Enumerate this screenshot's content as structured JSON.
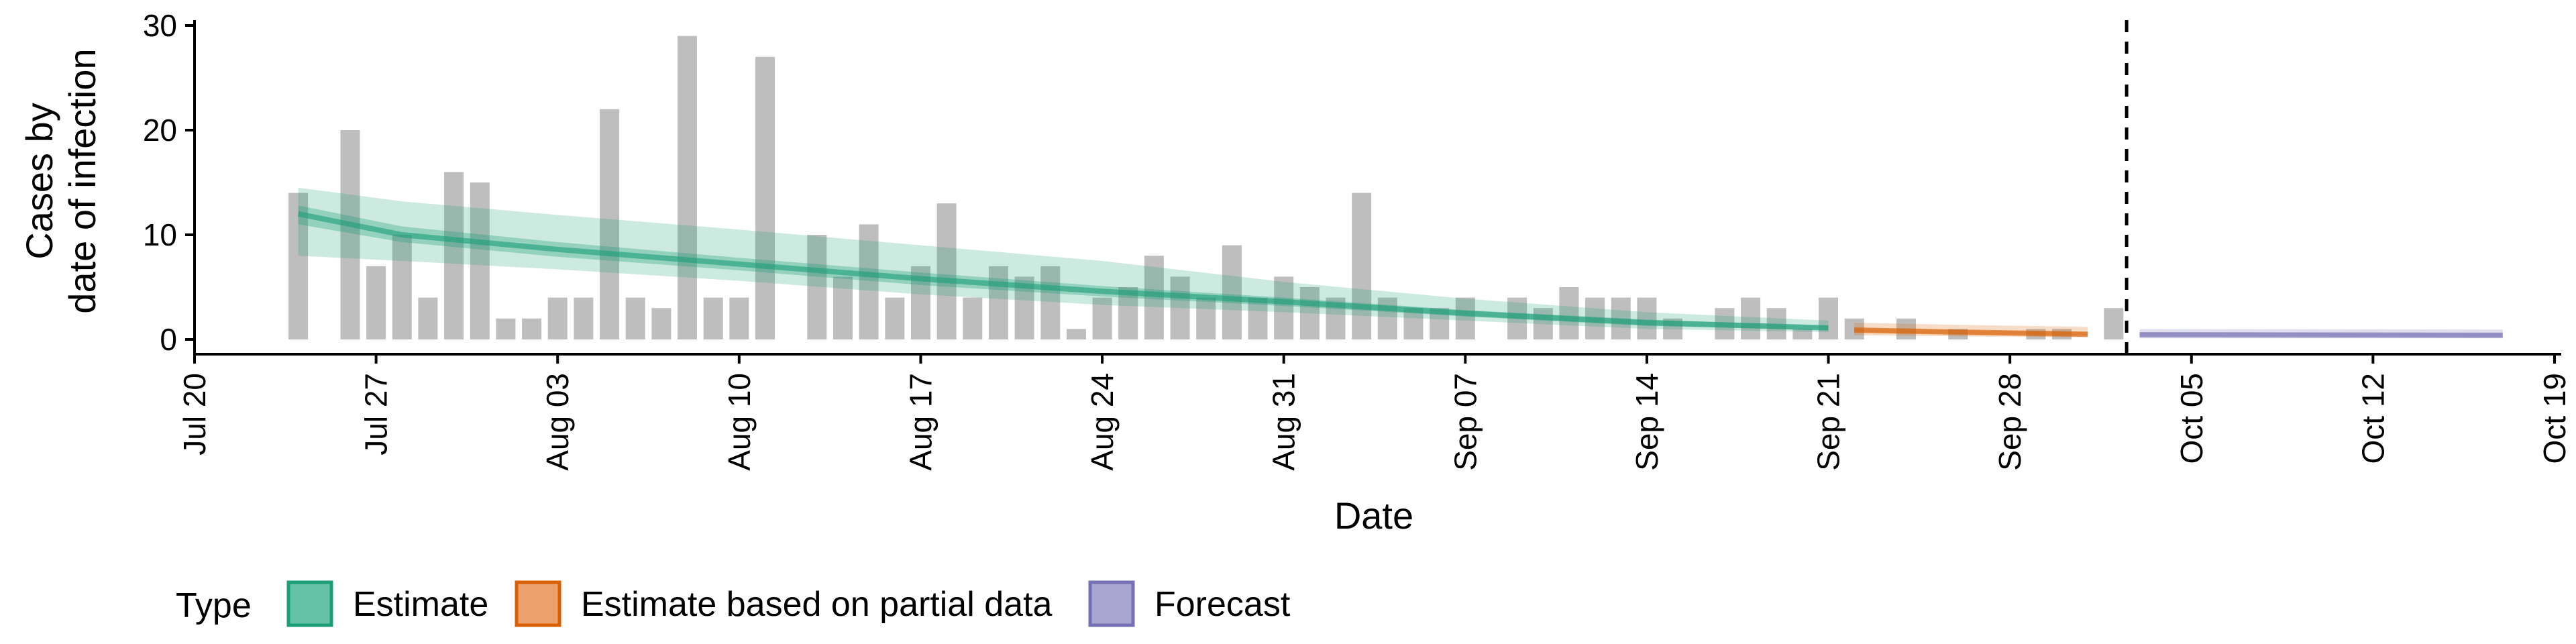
{
  "chart_data": {
    "type": "bar",
    "xlabel": "Date",
    "ylabel_lines": [
      "Cases by",
      "date of infection"
    ],
    "ylim": [
      0,
      30
    ],
    "yticks": [
      0,
      10,
      20,
      30
    ],
    "xlim": [
      "2020-07-20",
      "2020-10-19"
    ],
    "xticks": [
      {
        "date": "2020-07-20",
        "label": "Jul 20"
      },
      {
        "date": "2020-07-27",
        "label": "Jul 27"
      },
      {
        "date": "2020-08-03",
        "label": "Aug 03"
      },
      {
        "date": "2020-08-10",
        "label": "Aug 10"
      },
      {
        "date": "2020-08-17",
        "label": "Aug 17"
      },
      {
        "date": "2020-08-24",
        "label": "Aug 24"
      },
      {
        "date": "2020-08-31",
        "label": "Aug 31"
      },
      {
        "date": "2020-09-07",
        "label": "Sep 07"
      },
      {
        "date": "2020-09-14",
        "label": "Sep 14"
      },
      {
        "date": "2020-09-21",
        "label": "Sep 21"
      },
      {
        "date": "2020-09-28",
        "label": "Sep 28"
      },
      {
        "date": "2020-10-05",
        "label": "Oct 05"
      },
      {
        "date": "2020-10-12",
        "label": "Oct 12"
      },
      {
        "date": "2020-10-19",
        "label": "Oct 19"
      }
    ],
    "bars": {
      "color": "#BEBEBE",
      "dates": [
        "2020-07-24",
        "2020-07-25",
        "2020-07-26",
        "2020-07-27",
        "2020-07-28",
        "2020-07-29",
        "2020-07-30",
        "2020-07-31",
        "2020-08-01",
        "2020-08-02",
        "2020-08-03",
        "2020-08-04",
        "2020-08-05",
        "2020-08-06",
        "2020-08-07",
        "2020-08-08",
        "2020-08-09",
        "2020-08-10",
        "2020-08-11",
        "2020-08-12",
        "2020-08-13",
        "2020-08-14",
        "2020-08-15",
        "2020-08-16",
        "2020-08-17",
        "2020-08-18",
        "2020-08-19",
        "2020-08-20",
        "2020-08-21",
        "2020-08-22",
        "2020-08-23",
        "2020-08-24",
        "2020-08-25",
        "2020-08-26",
        "2020-08-27",
        "2020-08-28",
        "2020-08-29",
        "2020-08-30",
        "2020-08-31",
        "2020-09-01",
        "2020-09-02",
        "2020-09-03",
        "2020-09-04",
        "2020-09-05",
        "2020-09-06",
        "2020-09-07",
        "2020-09-08",
        "2020-09-09",
        "2020-09-10",
        "2020-09-11",
        "2020-09-12",
        "2020-09-13",
        "2020-09-14",
        "2020-09-15",
        "2020-09-16",
        "2020-09-17",
        "2020-09-18",
        "2020-09-19",
        "2020-09-20",
        "2020-09-21",
        "2020-09-22",
        "2020-09-23",
        "2020-09-24",
        "2020-09-25",
        "2020-09-26",
        "2020-09-27",
        "2020-09-28",
        "2020-09-29",
        "2020-09-30",
        "2020-10-01",
        "2020-10-02"
      ],
      "values": [
        14,
        0,
        20,
        7,
        10,
        4,
        16,
        15,
        2,
        2,
        4,
        4,
        22,
        4,
        3,
        29,
        4,
        4,
        27,
        0,
        10,
        6,
        11,
        4,
        7,
        13,
        4,
        7,
        6,
        7,
        1,
        4,
        5,
        8,
        6,
        4,
        9,
        4,
        6,
        5,
        4,
        14,
        4,
        3,
        3,
        4,
        0,
        4,
        3,
        5,
        4,
        4,
        4,
        2,
        0,
        3,
        4,
        3,
        1,
        4,
        2,
        0,
        2,
        0,
        1,
        0,
        0,
        1,
        1,
        0,
        3
      ]
    },
    "series": [
      {
        "name": "Estimate",
        "color": "#1B9E77",
        "x": [
          "2020-07-24",
          "2020-07-28",
          "2020-08-03",
          "2020-08-10",
          "2020-08-17",
          "2020-08-24",
          "2020-08-31",
          "2020-09-07",
          "2020-09-14",
          "2020-09-21"
        ],
        "median": [
          12,
          10,
          8.6,
          7.2,
          5.8,
          4.6,
          3.6,
          2.5,
          1.6,
          1.1
        ],
        "lower50": [
          11,
          9.3,
          7.9,
          6.6,
          5.2,
          4.1,
          3.2,
          2.2,
          1.3,
          0.9
        ],
        "upper50": [
          12.8,
          10.8,
          9.3,
          7.8,
          6.4,
          5.1,
          4,
          2.8,
          1.9,
          1.3
        ],
        "lower90": [
          8,
          7.5,
          6.7,
          5.6,
          4.3,
          3.3,
          2.6,
          1.8,
          1,
          0.7
        ],
        "upper90": [
          14.5,
          13.2,
          11.9,
          10.5,
          9,
          7.5,
          5.5,
          3.9,
          2.6,
          1.8
        ]
      },
      {
        "name": "Estimate based on partial data",
        "color": "#D95F02",
        "x": [
          "2020-09-22",
          "2020-09-26",
          "2020-10-01"
        ],
        "median": [
          0.9,
          0.7,
          0.5
        ],
        "lower50": [
          0.7,
          0.5,
          0.35
        ],
        "upper50": [
          1.1,
          0.9,
          0.7
        ],
        "lower90": [
          0.4,
          0.3,
          0.2
        ],
        "upper90": [
          1.6,
          1.4,
          1.2
        ]
      },
      {
        "name": "Forecast",
        "color": "#7570B3",
        "x": [
          "2020-10-03",
          "2020-10-10",
          "2020-10-17"
        ],
        "median": [
          0.45,
          0.42,
          0.4
        ],
        "lower50": [
          0.3,
          0.28,
          0.26
        ],
        "upper50": [
          0.65,
          0.62,
          0.6
        ],
        "lower90": [
          0.1,
          0.1,
          0.1
        ],
        "upper90": [
          1.0,
          0.98,
          0.95
        ]
      }
    ],
    "vline": {
      "date": "2020-10-02",
      "style": "dashed"
    },
    "legend": {
      "title": "Type",
      "placement": "bottom",
      "items": [
        {
          "label": "Estimate",
          "fill": "#66C2A5",
          "stroke": "#1B9E77"
        },
        {
          "label": "Estimate based on partial data",
          "fill": "#ECA06B",
          "stroke": "#D95F02"
        },
        {
          "label": "Forecast",
          "fill": "#A9A6D1",
          "stroke": "#7570B3"
        }
      ]
    },
    "grid": false
  }
}
